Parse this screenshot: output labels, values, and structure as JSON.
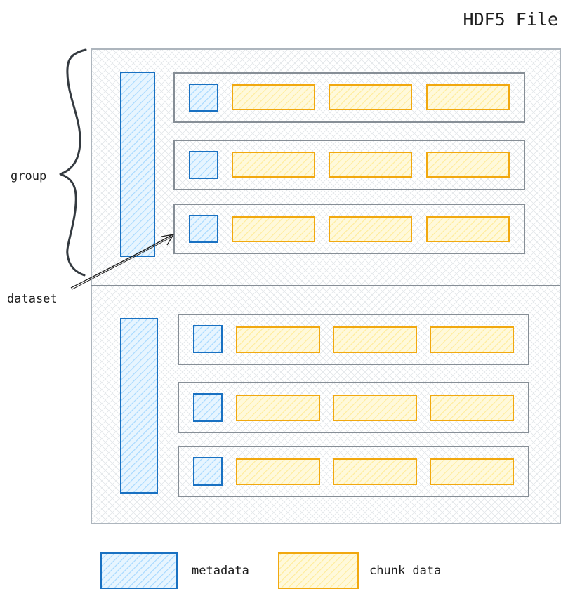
{
  "title": "HDF5 File",
  "annotations": {
    "group": "group",
    "dataset": "dataset"
  },
  "legend": {
    "metadata": "metadata",
    "chunk_data": "chunk data"
  },
  "colors": {
    "metadata": "#1971c2",
    "metadata_fill": "#a5d8ff",
    "chunk": "#f1a80f",
    "chunk_fill": "#ffec99",
    "frame": "#868e96",
    "file": "#adb5bd",
    "ink": "#1e1e1e"
  },
  "structure": {
    "groups": 2,
    "datasets_per_group": 3,
    "chunks_per_dataset": 3
  }
}
